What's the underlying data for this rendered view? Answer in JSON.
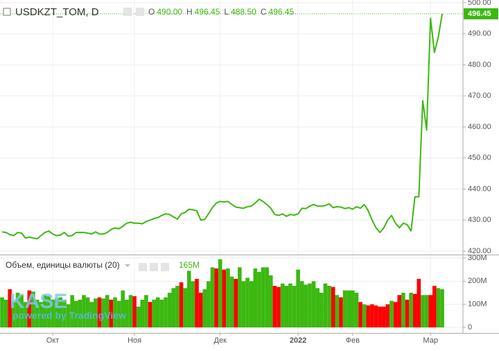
{
  "chart_data": [
    {
      "type": "line",
      "title": "USDKZT_TOM, D",
      "ohlc_names": [
        "O",
        "H",
        "L",
        "C"
      ],
      "ohlc": [
        490,
        496.45,
        488.5,
        496.45
      ],
      "ohlc_labels": [
        "490.00",
        "496.45",
        "488.50",
        "496.45"
      ],
      "last_label": "496.45",
      "color": "#3cb811",
      "categories": [
        null,
        null,
        null,
        null,
        null,
        null,
        null,
        null,
        null,
        null,
        null,
        null,
        null,
        "Окт",
        null,
        null,
        null,
        null,
        null,
        null,
        null,
        null,
        null,
        null,
        null,
        null,
        null,
        null,
        null,
        null,
        null,
        null,
        null,
        null,
        "Ноя",
        null,
        null,
        null,
        null,
        null,
        null,
        null,
        null,
        null,
        null,
        null,
        null,
        null,
        null,
        null,
        null,
        null,
        null,
        null,
        null,
        null,
        "Дек",
        null,
        null,
        null,
        null,
        null,
        null,
        null,
        null,
        null,
        null,
        null,
        null,
        null,
        null,
        null,
        null,
        null,
        null,
        null,
        "2022",
        null,
        null,
        null,
        null,
        null,
        null,
        null,
        null,
        null,
        null,
        null,
        null,
        null,
        "Фев",
        null,
        null,
        null,
        null,
        null,
        null,
        null,
        null,
        null,
        null,
        null,
        null,
        null,
        null,
        null,
        null,
        null,
        null,
        null,
        "Мар",
        null,
        null,
        null
      ],
      "values": [
        426.2,
        426,
        425.3,
        425,
        426,
        425.8,
        424.2,
        424.5,
        424.2,
        424,
        425,
        426,
        426.5,
        425.5,
        425,
        425.2,
        426,
        424.8,
        425,
        426,
        426,
        426,
        425.8,
        425.5,
        426.2,
        425.5,
        425.5,
        426,
        427,
        427.5,
        427.2,
        428,
        429,
        429.3,
        429,
        429,
        428.8,
        429.5,
        430,
        430.5,
        430.8,
        431.5,
        432,
        431.8,
        431,
        430.3,
        432,
        432.5,
        433.5,
        433.3,
        433,
        430,
        430.2,
        432,
        434,
        435.5,
        436,
        435.8,
        436,
        435,
        434.2,
        434,
        433.8,
        434.3,
        434.5,
        435.5,
        436.7,
        436,
        435,
        433.8,
        431.8,
        431.5,
        432,
        431.2,
        431.8,
        431.6,
        432,
        433.8,
        433.7,
        434.5,
        435,
        434.5,
        434.5,
        434.7,
        435.2,
        434,
        434.3,
        434.2,
        433.7,
        434,
        433.5,
        434.3,
        433.8,
        435,
        433,
        430,
        427.5,
        426,
        427.5,
        430,
        431.5,
        429,
        427.5,
        429,
        428.5,
        426.5,
        437.5,
        437.5,
        468.5,
        459,
        495,
        484,
        489,
        496.45
      ],
      "ylim": [
        420,
        500
      ],
      "yticks": [
        {
          "value": 420,
          "label": "420.00"
        },
        {
          "value": 430,
          "label": "430.00"
        },
        {
          "value": 440,
          "label": "440.00"
        },
        {
          "value": 450,
          "label": "450.00"
        },
        {
          "value": 460,
          "label": "460.00"
        },
        {
          "value": 470,
          "label": "470.00"
        },
        {
          "value": 480,
          "label": "480.00"
        },
        {
          "value": 490,
          "label": "490.00"
        },
        {
          "value": 500,
          "label": "500.00"
        }
      ],
      "grid": true
    },
    {
      "type": "bar",
      "title": "Объем, единицы валюты (20)",
      "current_label": "165M",
      "values": [
        130,
        120,
        165,
        110,
        150,
        140,
        110,
        160,
        155,
        120,
        110,
        140,
        135,
        120,
        125,
        130,
        120,
        100,
        140,
        115,
        120,
        140,
        130,
        110,
        125,
        130,
        125,
        140,
        120,
        130,
        115,
        160,
        120,
        140,
        135,
        90,
        120,
        140,
        110,
        120,
        130,
        120,
        130,
        150,
        170,
        180,
        195,
        170,
        245,
        200,
        210,
        150,
        165,
        200,
        260,
        255,
        295,
        250,
        255,
        220,
        210,
        260,
        200,
        215,
        200,
        255,
        240,
        260,
        260,
        225,
        180,
        175,
        190,
        180,
        190,
        180,
        250,
        200,
        185,
        190,
        200,
        170,
        150,
        190,
        180,
        175,
        140,
        130,
        160,
        160,
        160,
        150,
        110,
        100,
        95,
        100,
        95,
        90,
        90,
        100,
        115,
        110,
        140,
        150,
        120,
        150,
        145,
        210,
        140,
        140,
        140,
        180,
        170,
        165
      ],
      "colors": [
        "#3cb811",
        "#3cb811",
        "#ff0000",
        "#3cb811",
        "#3cb811",
        "#3cb811",
        "#3cb811",
        "#ff0000",
        "#3cb811",
        "#3cb811",
        "#3cb811",
        "#3cb811",
        "#3cb811",
        "#3cb811",
        "#3cb811",
        "#3cb811",
        "#3cb811",
        "#3cb811",
        "#3cb811",
        "#3cb811",
        "#3cb811",
        "#3cb811",
        "#3cb811",
        "#3cb811",
        "#3cb811",
        "#ff0000",
        "#3cb811",
        "#3cb811",
        "#ff0000",
        "#3cb811",
        "#3cb811",
        "#3cb811",
        "#3cb811",
        "#3cb811",
        "#ff0000",
        "#3cb811",
        "#3cb811",
        "#3cb811",
        "#ff0000",
        "#3cb811",
        "#3cb811",
        "#3cb811",
        "#3cb811",
        "#3cb811",
        "#3cb811",
        "#3cb811",
        "#ff0000",
        "#3cb811",
        "#3cb811",
        "#3cb811",
        "#ff0000",
        "#ff0000",
        "#3cb811",
        "#3cb811",
        "#3cb811",
        "#ff0000",
        "#3cb811",
        "#ff0000",
        "#3cb811",
        "#3cb811",
        "#ff0000",
        "#3cb811",
        "#3cb811",
        "#3cb811",
        "#3cb811",
        "#3cb811",
        "#3cb811",
        "#3cb811",
        "#3cb811",
        "#3cb811",
        "#ff0000",
        "#ff0000",
        "#3cb811",
        "#3cb811",
        "#3cb811",
        "#3cb811",
        "#3cb811",
        "#3cb811",
        "#3cb811",
        "#3cb811",
        "#3cb811",
        "#3cb811",
        "#3cb811",
        "#3cb811",
        "#3cb811",
        "#ff0000",
        "#3cb811",
        "#ff0000",
        "#3cb811",
        "#3cb811",
        "#3cb811",
        "#3cb811",
        "#ff0000",
        "#3cb811",
        "#ff0000",
        "#ff0000",
        "#ff0000",
        "#ff0000",
        "#ff0000",
        "#ff0000",
        "#3cb811",
        "#ff0000",
        "#ff0000",
        "#3cb811",
        "#ff0000",
        "#3cb811",
        "#ff0000",
        "#ff0000",
        "#3cb811",
        "#3cb811",
        "#ff0000",
        "#ff0000",
        "#3cb811",
        "#3cb811"
      ],
      "ylim": [
        0,
        300
      ],
      "yticks": [
        0,
        {
          "value": 100,
          "label": "100M"
        },
        {
          "value": 200,
          "label": "200M"
        },
        {
          "value": 300,
          "label": "300M"
        }
      ],
      "grid": true
    }
  ],
  "watermark": {
    "logo": "KASE",
    "credit": "powered by TradingView"
  }
}
